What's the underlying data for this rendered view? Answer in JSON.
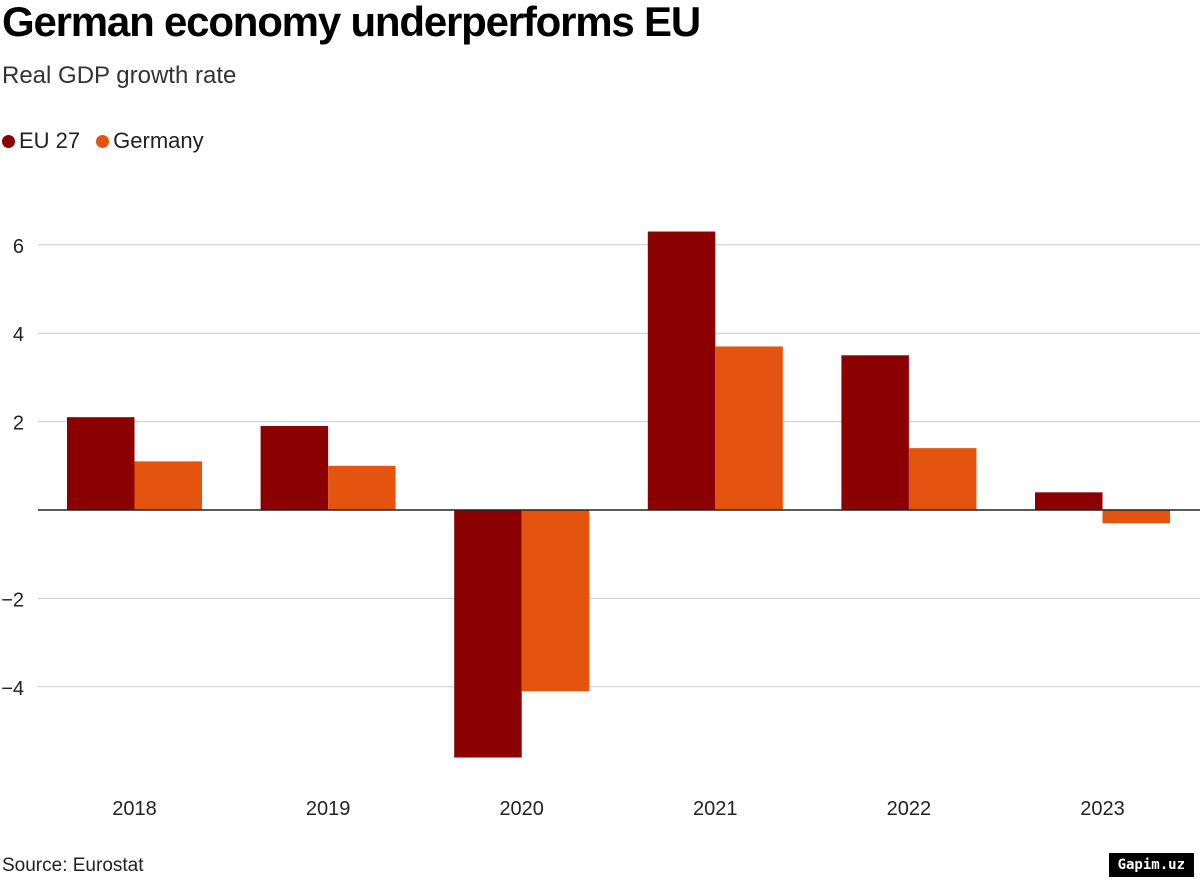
{
  "header": {
    "title": "German economy underperforms EU",
    "subtitle": "Real GDP growth rate"
  },
  "legend": {
    "items": [
      {
        "label": "EU 27",
        "color": "#8b0000"
      },
      {
        "label": "Germany",
        "color": "#e5540f"
      }
    ]
  },
  "footer": {
    "source": "Source: Eurostat",
    "watermark": "Gapim.uz"
  },
  "chart_data": {
    "type": "bar",
    "title": "German economy underperforms EU",
    "subtitle": "Real GDP growth rate",
    "xlabel": "",
    "ylabel": "",
    "categories": [
      "2018",
      "2019",
      "2020",
      "2021",
      "2022",
      "2023"
    ],
    "series": [
      {
        "name": "EU 27",
        "color": "#8b0000",
        "values": [
          2.1,
          1.9,
          -5.6,
          6.3,
          3.5,
          0.4
        ]
      },
      {
        "name": "Germany",
        "color": "#e5540f",
        "values": [
          1.1,
          1.0,
          -4.1,
          3.7,
          1.4,
          -0.3
        ]
      }
    ],
    "ylim": [
      -6,
      6
    ],
    "yticks": [
      6,
      4,
      2,
      -2,
      -4
    ],
    "ytick_labels": [
      "6",
      "4",
      "2",
      "−2",
      "−4"
    ],
    "grid": true,
    "legend_position": "top-left"
  }
}
